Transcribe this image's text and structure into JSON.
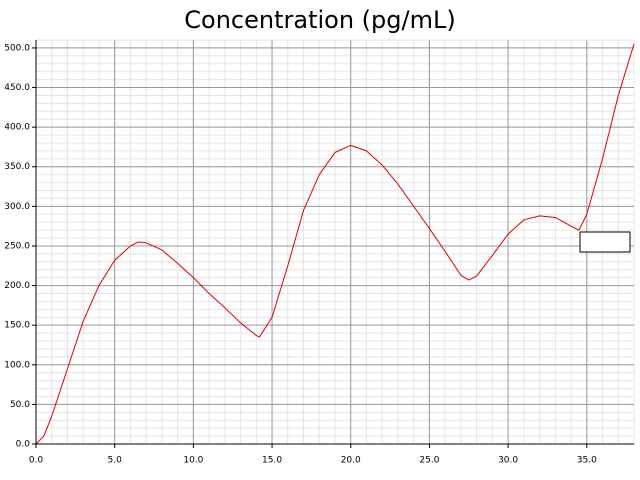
{
  "chart_data": {
    "type": "line",
    "title": "Concentration (pg/mL)",
    "x": [
      0,
      0.5,
      1,
      2,
      3,
      4,
      5,
      6,
      6.5,
      7,
      8,
      9,
      10,
      11,
      12,
      13,
      14,
      14.2,
      15,
      16,
      17,
      18,
      19,
      20,
      21,
      22,
      23,
      24,
      25,
      26,
      27,
      27.5,
      28,
      29,
      30,
      31,
      32,
      33,
      34,
      34.5,
      35,
      36,
      37,
      38
    ],
    "series": [
      {
        "color": "#e00000",
        "values": [
          0,
          10,
          35,
          95,
          155,
          200,
          232,
          250,
          255,
          254,
          245,
          228,
          210,
          190,
          172,
          153,
          137,
          135,
          160,
          225,
          295,
          340,
          368,
          377,
          370,
          352,
          328,
          300,
          272,
          243,
          213,
          207,
          212,
          238,
          265,
          283,
          288,
          286,
          275,
          270,
          290,
          360,
          440,
          505
        ]
      }
    ],
    "xlim": [
      0,
      38
    ],
    "xticks": [
      {
        "value": 0,
        "label": "0.0"
      },
      {
        "value": 5,
        "label": "5.0"
      },
      {
        "value": 10,
        "label": "10.0"
      },
      {
        "value": 15,
        "label": "15.0"
      },
      {
        "value": 20,
        "label": "20.0"
      },
      {
        "value": 25,
        "label": "25.0"
      },
      {
        "value": 30,
        "label": "30.0"
      },
      {
        "value": 35,
        "label": "35.0"
      }
    ],
    "ylim": [
      0,
      510
    ],
    "yticks": [
      {
        "value": 0,
        "label": "0.0"
      },
      {
        "value": 50,
        "label": "50.0"
      },
      {
        "value": 100,
        "label": "100.0"
      },
      {
        "value": 150,
        "label": "150.0"
      },
      {
        "value": 200,
        "label": "200.0"
      },
      {
        "value": 250,
        "label": "250.0"
      },
      {
        "value": 300,
        "label": "300.0"
      },
      {
        "value": 350,
        "label": "350.0"
      },
      {
        "value": 400,
        "label": "400.0"
      },
      {
        "value": 450,
        "label": "450.0"
      },
      {
        "value": 500,
        "label": "500.0"
      }
    ],
    "grid": true,
    "minor_grid": true
  }
}
